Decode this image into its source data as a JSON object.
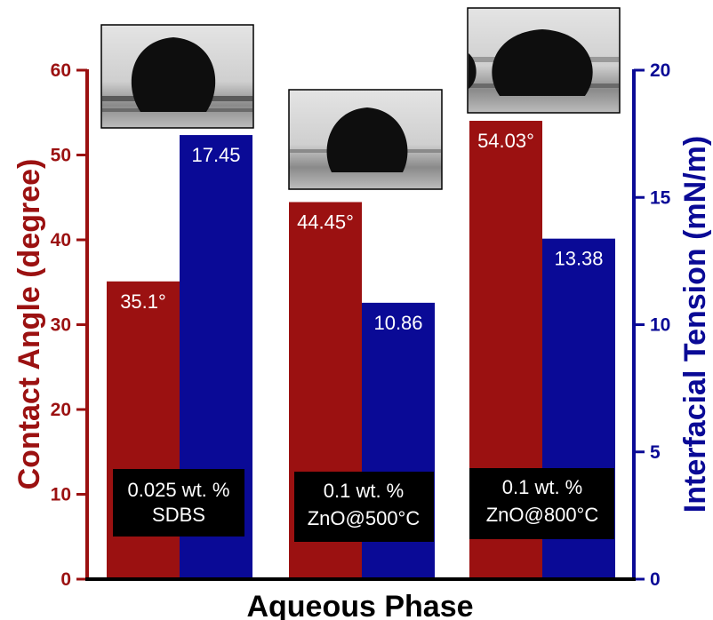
{
  "chart_data": {
    "type": "bar",
    "xlabel": "Aqueous Phase",
    "ylabel_left": "Contact Angle (degree)",
    "ylabel_right": "Interfacial Tension (mN/m)",
    "ylim_left": [
      0,
      60
    ],
    "ylim_right": [
      0,
      20
    ],
    "yticks_left": [
      "0",
      "10",
      "20",
      "30",
      "40",
      "50",
      "60"
    ],
    "yticks_right": [
      "0",
      "5",
      "10",
      "15",
      "20"
    ],
    "categories": [
      {
        "line1": "0.025 wt. %",
        "line2": "SDBS"
      },
      {
        "line1": "0.1 wt. %",
        "line2": "ZnO@500°C"
      },
      {
        "line1": "0.1 wt. %",
        "line2": "ZnO@800°C"
      }
    ],
    "series": [
      {
        "axis": "left",
        "color": "#9b1111",
        "values": [
          35.1,
          44.45,
          54.03
        ],
        "labels": [
          "35.1°",
          "44.45°",
          "54.03°"
        ]
      },
      {
        "axis": "right",
        "color": "#0a0a96",
        "values": [
          17.45,
          10.86,
          13.38
        ],
        "labels": [
          "17.45",
          "10.86",
          "13.38"
        ]
      }
    ],
    "colors": {
      "left_axis": "#9b1111",
      "right_axis": "#0a0a96",
      "label_box": "#000000"
    },
    "grid": false,
    "insets": "droplet photographs above each category"
  }
}
